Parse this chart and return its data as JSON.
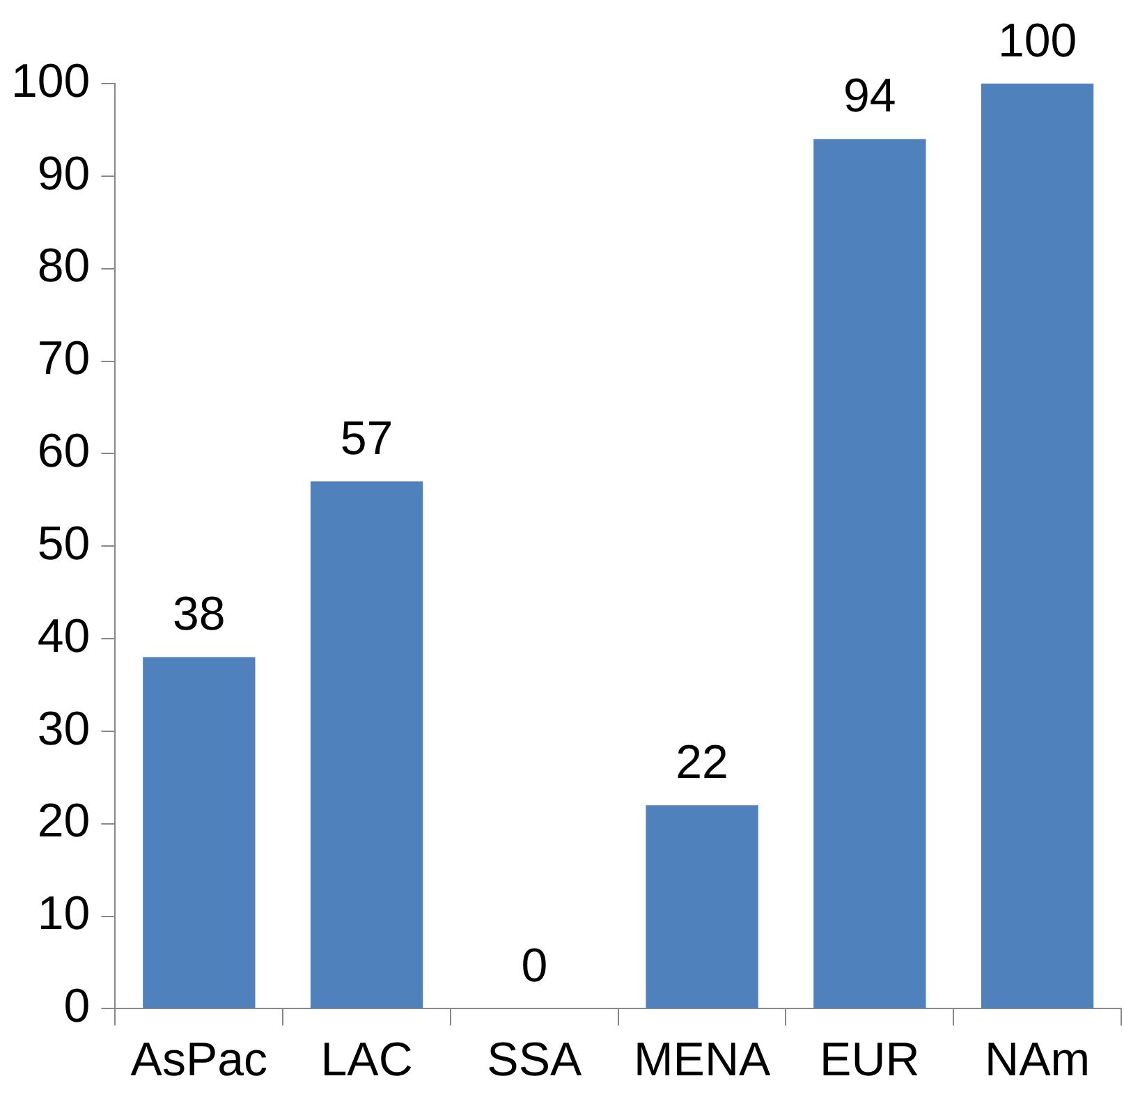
{
  "chart_data": {
    "type": "bar",
    "categories": [
      "AsPac",
      "LAC",
      "SSA",
      "MENA",
      "EUR",
      "NAm"
    ],
    "values": [
      38,
      57,
      0,
      22,
      94,
      100
    ],
    "color": "#4f81bd",
    "ylim": [
      0,
      100
    ],
    "yticks": [
      0,
      10,
      20,
      30,
      40,
      50,
      60,
      70,
      80,
      90,
      100
    ],
    "data_labels": true,
    "grid": false,
    "legend": false
  }
}
